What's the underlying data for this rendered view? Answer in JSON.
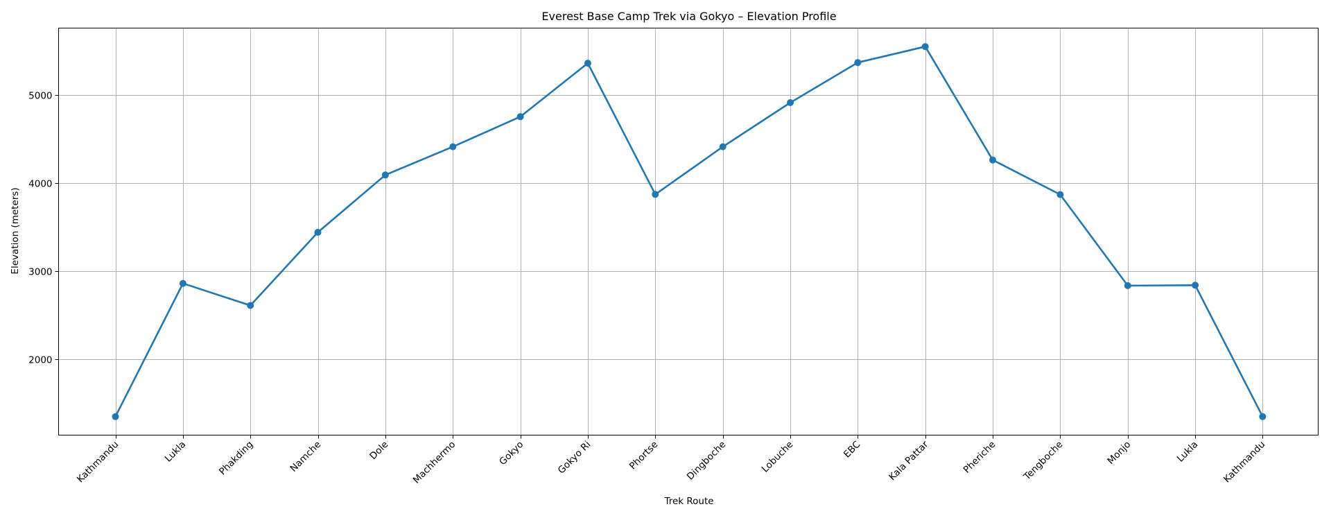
{
  "chart_data": {
    "type": "line",
    "title": "Everest Base Camp Trek via Gokyo – Elevation Profile",
    "xlabel": "Trek Route",
    "ylabel": "Elevation (meters)",
    "categories": [
      "Kathmandu",
      "Lukla",
      "Phakding",
      "Namche",
      "Dole",
      "Machhermo",
      "Gokyo",
      "Gokyo Ri",
      "Phortse",
      "Dingboche",
      "Lobuche",
      "EBC",
      "Kala Pattar",
      "Pheriche",
      "Tengboche",
      "Monjo",
      "Lukla",
      "Kathmandu"
    ],
    "series": [
      {
        "name": "Elevation",
        "color": "#1f77b4",
        "marker": "circle",
        "values": [
          1350,
          2860,
          2610,
          3440,
          4090,
          4410,
          4750,
          5357,
          3870,
          4410,
          4910,
          5364,
          5545,
          4260,
          3867,
          2835,
          2840,
          1350
        ]
      }
    ],
    "yticks": [
      2000,
      3000,
      4000,
      5000
    ],
    "ylim": [
      1140,
      5755
    ],
    "grid": true,
    "legend": null,
    "xtick_rotation": 45
  }
}
